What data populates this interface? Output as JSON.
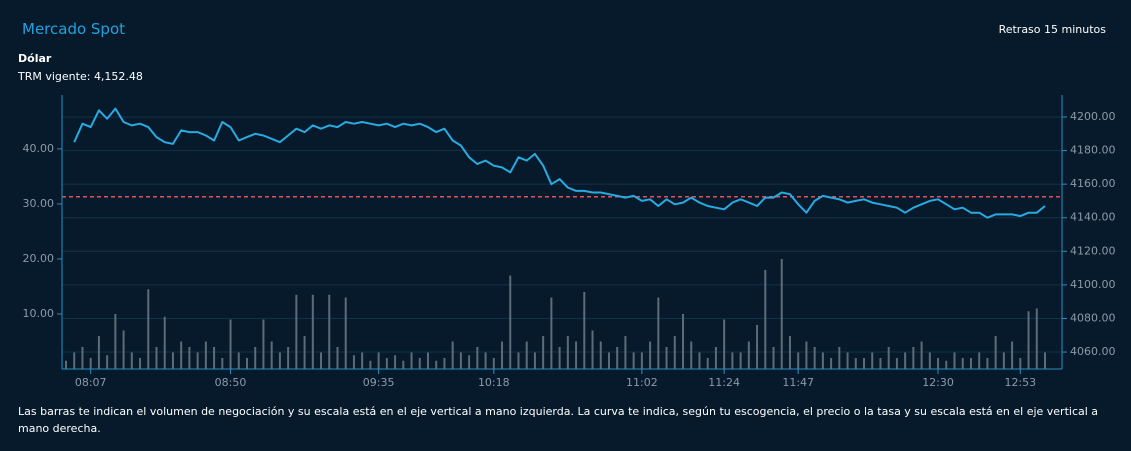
{
  "chart_data": {
    "type": "combo",
    "title": "Mercado Spot",
    "delay_note": "Retraso 15 minutos",
    "subtitle": "Dólar",
    "trm_label": "TRM vigente:",
    "reference_line": {
      "value": 4152.48,
      "label": "4,152.48",
      "color": "#e0505a"
    },
    "footnote": "Las barras te indican el volumen de negociación y su escala está en el eje vertical a mano izquierda. La curva te indica, según tu escogencia, el precio o la tasa y su escala está en el eje vertical a mano derecha.",
    "categories": [
      null,
      null,
      null,
      "08:07",
      null,
      null,
      null,
      null,
      null,
      null,
      null,
      null,
      null,
      null,
      null,
      null,
      null,
      null,
      null,
      null,
      "08:50",
      null,
      null,
      null,
      null,
      null,
      null,
      null,
      null,
      null,
      null,
      null,
      null,
      null,
      null,
      null,
      null,
      null,
      "09:35",
      null,
      null,
      null,
      null,
      null,
      null,
      null,
      null,
      null,
      null,
      null,
      null,
      null,
      "10:18",
      null,
      null,
      null,
      null,
      null,
      null,
      null,
      null,
      null,
      null,
      null,
      null,
      null,
      null,
      null,
      null,
      null,
      "11:02",
      null,
      null,
      null,
      null,
      null,
      null,
      null,
      null,
      null,
      "11:24",
      null,
      null,
      null,
      null,
      null,
      null,
      null,
      null,
      "11:47",
      null,
      null,
      null,
      null,
      null,
      null,
      null,
      null,
      null,
      null,
      null,
      null,
      null,
      null,
      null,
      null,
      "12:30",
      null,
      null,
      null,
      null,
      null,
      null,
      null,
      null,
      null,
      "12:53",
      null,
      null,
      null
    ],
    "series": [
      {
        "type": "bar",
        "axis": "y",
        "color": "#5d6c79",
        "values": [
          1.5,
          3,
          4,
          2,
          6,
          2.5,
          10,
          7,
          3,
          2,
          14.5,
          4,
          9.5,
          3,
          5,
          4,
          3,
          5,
          4,
          2,
          9,
          3,
          2,
          4,
          9,
          5,
          3,
          4,
          13.5,
          6,
          13.5,
          3,
          13.5,
          4,
          13,
          2.5,
          3,
          1.5,
          3,
          2,
          2.5,
          1.5,
          3,
          2,
          3,
          1.5,
          2,
          5,
          3,
          2.5,
          4,
          3,
          2,
          5,
          17,
          3,
          5,
          3,
          6,
          13,
          4,
          6,
          5,
          14,
          7,
          5,
          3,
          4,
          6,
          3,
          3,
          5,
          13,
          4,
          6,
          10,
          5,
          3,
          2,
          4,
          9,
          3,
          3,
          5,
          8,
          18,
          4,
          20,
          6,
          3,
          5,
          4,
          3,
          2,
          4,
          3,
          2,
          2,
          3,
          2,
          4,
          2,
          3,
          4,
          5,
          3,
          2,
          1.5,
          3,
          2,
          2,
          3,
          2,
          6,
          3,
          5,
          2,
          10.5,
          11,
          3
        ]
      },
      {
        "type": "line",
        "axis": "y2",
        "color": "#29aae1",
        "values": [
          null,
          4185,
          4196,
          4194,
          4204,
          4199,
          4205,
          4197,
          4195,
          4196,
          4194,
          4188,
          4185,
          4184,
          4192,
          4191,
          4191,
          4189,
          4186,
          4197,
          4194,
          4186,
          4188,
          4190,
          4189,
          4187,
          4185,
          4189,
          4193,
          4191,
          4195,
          4193,
          4195,
          4194,
          4197,
          4196,
          4197,
          4196,
          4195,
          4196,
          4194,
          4196,
          4195,
          4196,
          4194,
          4191,
          4193,
          4186,
          4183,
          4176,
          4172,
          4174,
          4171,
          4170,
          4167,
          4176,
          4174,
          4178,
          4171,
          4160,
          4163,
          4158,
          4156,
          4156,
          4155,
          4155,
          4154,
          4153,
          4152,
          4153,
          4150,
          4151,
          4147,
          4151,
          4148,
          4149,
          4152,
          4149,
          4147,
          4146,
          4145,
          4149,
          4151,
          4149,
          4147,
          4152,
          4152,
          4155,
          4154,
          4148,
          4143,
          4150,
          4153,
          4152,
          4151,
          4149,
          4150,
          4151,
          4149,
          4148,
          4147,
          4146,
          4143,
          4146,
          4148,
          4150,
          4151,
          4148,
          4145,
          4146,
          4143,
          4143,
          4140,
          4142,
          4142,
          4142,
          4141,
          4143,
          4143,
          4147
        ]
      }
    ],
    "ylim": [
      0,
      49.8
    ],
    "yticks": [
      {
        "value": 10,
        "label": "10.00"
      },
      {
        "value": 20,
        "label": "20.00"
      },
      {
        "value": 30,
        "label": "30.00"
      },
      {
        "value": 40,
        "label": "40.00"
      }
    ],
    "y2lim": [
      4049.9,
      4213.1
    ],
    "y2ticks": [
      {
        "value": 4060,
        "label": "4060.00"
      },
      {
        "value": 4080,
        "label": "4080.00"
      },
      {
        "value": 4100,
        "label": "4100.00"
      },
      {
        "value": 4120,
        "label": "4120.00"
      },
      {
        "value": 4140,
        "label": "4140.00"
      },
      {
        "value": 4160,
        "label": "4160.00"
      },
      {
        "value": 4180,
        "label": "4180.00"
      },
      {
        "value": 4200,
        "label": "4200.00"
      }
    ],
    "grid": "y2"
  }
}
